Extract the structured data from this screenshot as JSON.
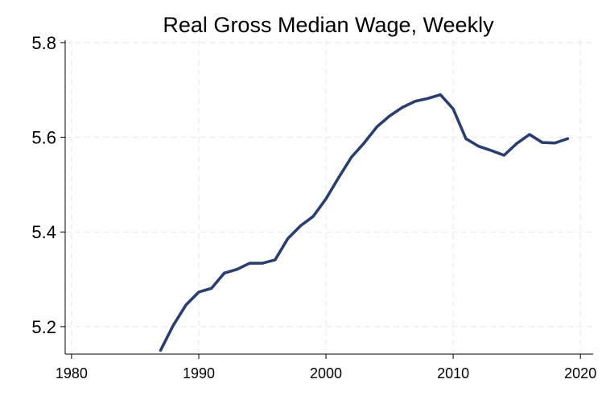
{
  "chart_data": {
    "type": "line",
    "title": "Real Gross Median Wage, Weekly",
    "xlabel": "",
    "ylabel": "",
    "xlim": [
      1979.5,
      2021
    ],
    "ylim": [
      5.142,
      5.805
    ],
    "x_ticks": [
      1980,
      1990,
      2000,
      2010,
      2020
    ],
    "y_ticks": [
      5.2,
      5.4,
      5.6,
      5.8
    ],
    "x_tick_labels": [
      "1980",
      "1990",
      "2000",
      "2010",
      "2020"
    ],
    "y_tick_labels": [
      "5.2",
      "5.4",
      "5.6",
      "5.8"
    ],
    "grid": true,
    "legend": "none",
    "series": [
      {
        "color": "#2b3f6e",
        "x": [
          1987,
          1988,
          1989,
          1990,
          1991,
          1992,
          1993,
          1994,
          1995,
          1996,
          1997,
          1998,
          1999,
          2000,
          2001,
          2002,
          2003,
          2004,
          2005,
          2006,
          2007,
          2008,
          2009,
          2010,
          2011,
          2012,
          2013,
          2014,
          2015,
          2016,
          2017,
          2018,
          2019
        ],
        "values": [
          5.15,
          5.203,
          5.246,
          5.273,
          5.281,
          5.313,
          5.321,
          5.334,
          5.334,
          5.341,
          5.386,
          5.413,
          5.433,
          5.47,
          5.515,
          5.558,
          5.588,
          5.622,
          5.645,
          5.663,
          5.676,
          5.682,
          5.69,
          5.66,
          5.597,
          5.581,
          5.572,
          5.562,
          5.587,
          5.606,
          5.589,
          5.588,
          5.597
        ]
      }
    ]
  }
}
